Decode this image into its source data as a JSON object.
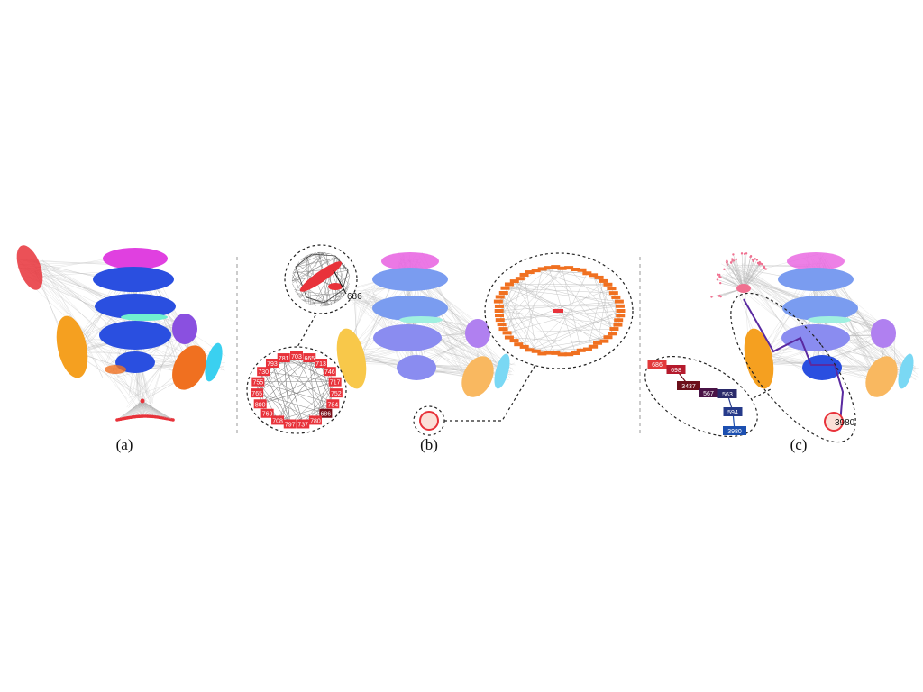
{
  "panels": [
    {
      "id": "a",
      "label": "(a)"
    },
    {
      "id": "b",
      "label": "(b)"
    },
    {
      "id": "c",
      "label": "(c)"
    }
  ],
  "callouts": {
    "b_hub_node": "686",
    "b_ring_nodes": [
      "703",
      "665",
      "713",
      "746",
      "717",
      "752",
      "784",
      "686",
      "780",
      "737",
      "797",
      "708",
      "769",
      "800",
      "765",
      "755",
      "730",
      "793",
      "781"
    ],
    "c_path_node": "3980",
    "c_path_nodes": [
      {
        "label": "686",
        "color": "#e2393a"
      },
      {
        "label": "698",
        "color": "#b51a2c"
      },
      {
        "label": "3437",
        "color": "#6b0f1a"
      },
      {
        "label": "567",
        "color": "#4a1346"
      },
      {
        "label": "563",
        "color": "#2a2a6a"
      },
      {
        "label": "594",
        "color": "#253a8a"
      },
      {
        "label": "3980",
        "color": "#1c4fb0"
      }
    ]
  },
  "colors": {
    "red": "#e8323a",
    "magenta": "#e040e0",
    "royal_blue": "#2a4fe0",
    "light_blue": "#7a9cf0",
    "cyan": "#3ad0f0",
    "purple": "#8a50e0",
    "light_purple": "#b080f0",
    "orange": "#f5a020",
    "dark_orange": "#f07020",
    "light_orange": "#f9b860",
    "aqua": "#70f0d0",
    "gray_edge": "#b8b8b8",
    "pink": "#f07090",
    "yellow": "#f8c84a",
    "periwinkle": "#8a8cf0"
  }
}
